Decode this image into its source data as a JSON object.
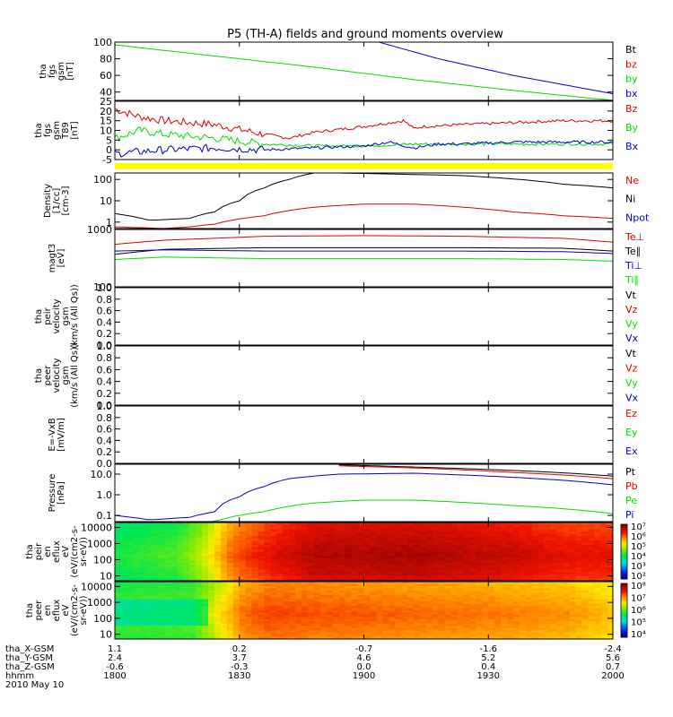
{
  "title": "P5 (TH-A) fields and ground moments overview",
  "colors": {
    "black": "#000000",
    "red": "#dd0000",
    "green": "#00dd00",
    "blue": "#0000cc",
    "yellow": "#ffff00"
  },
  "chart_data": [
    {
      "type": "line",
      "id": "bgsm",
      "ylabel": [
        "tha",
        "fgs",
        "gsm",
        "[nT]"
      ],
      "ylim": [
        30,
        100
      ],
      "yticks": [
        "100",
        "80",
        "60",
        "40"
      ],
      "ytick_values": [
        100,
        80,
        60,
        40
      ],
      "legend": [
        {
          "name": "Bt",
          "color": "black"
        },
        {
          "name": "bz",
          "color": "red"
        },
        {
          "name": "by",
          "color": "green"
        },
        {
          "name": "bx",
          "color": "blue"
        }
      ],
      "series": [
        {
          "name": "by",
          "color": "green",
          "x": [
            -0.05,
            0.4,
            0.6,
            0.8,
            1.0
          ],
          "y": [
            100,
            70,
            55,
            42,
            30
          ]
        },
        {
          "name": "bx",
          "color": "blue",
          "x": [
            0.53,
            0.65,
            0.8,
            1.0
          ],
          "y": [
            100,
            80,
            60,
            38
          ]
        }
      ]
    },
    {
      "type": "line",
      "id": "bt89",
      "ylabel": [
        "tha",
        "fgs",
        "gsm",
        "T89",
        "[nT]"
      ],
      "ylim": [
        -5,
        25
      ],
      "yticks": [
        "25",
        "20",
        "15",
        "10",
        "5",
        "0",
        "-5"
      ],
      "ytick_values": [
        25,
        20,
        15,
        10,
        5,
        0,
        -5
      ],
      "legend": [
        {
          "name": "Bz",
          "color": "red"
        },
        {
          "name": "By",
          "color": "green"
        },
        {
          "name": "Bx",
          "color": "blue"
        }
      ],
      "series": [
        {
          "name": "Bz",
          "color": "red",
          "noisy": true,
          "x": [
            0,
            0.05,
            0.1,
            0.2,
            0.3,
            0.35,
            0.4,
            0.5,
            0.58,
            0.6,
            0.62,
            0.7,
            0.8,
            0.9,
            1.0
          ],
          "y": [
            21,
            17,
            15,
            13,
            8,
            6,
            9,
            12,
            15,
            11,
            12,
            13,
            14,
            15,
            15
          ]
        },
        {
          "name": "By",
          "color": "green",
          "noisy": true,
          "x": [
            0,
            0.05,
            0.1,
            0.2,
            0.3,
            0.4,
            0.5,
            0.6,
            0.7,
            0.8,
            1.0
          ],
          "y": [
            6,
            10,
            8,
            6,
            3,
            2,
            2,
            3,
            3,
            3,
            3
          ]
        },
        {
          "name": "Bx",
          "color": "blue",
          "noisy": true,
          "x": [
            0,
            0.1,
            0.2,
            0.3,
            0.4,
            0.5,
            0.55,
            0.6,
            0.65,
            0.7,
            0.8,
            1.0
          ],
          "y": [
            -2,
            0,
            1,
            0,
            1,
            2,
            4,
            1,
            3,
            3,
            4,
            4
          ]
        }
      ]
    },
    {
      "type": "line",
      "id": "density",
      "ylabel": [
        "Density",
        "[1/cc]",
        "[cm-3]"
      ],
      "log": true,
      "ylim": [
        0.5,
        200
      ],
      "yticks": [
        "100",
        "10",
        "1"
      ],
      "ytick_values": [
        100,
        10,
        1
      ],
      "legend": [
        {
          "name": "Ne",
          "color": "red"
        },
        {
          "name": "Ni",
          "color": "black"
        },
        {
          "name": "Npot",
          "color": "blue"
        }
      ],
      "series": [
        {
          "name": "Ni",
          "color": "black",
          "x": [
            0,
            0.07,
            0.15,
            0.2,
            0.25,
            0.3,
            0.35,
            0.4,
            0.45,
            0.7,
            0.9,
            1.0
          ],
          "y": [
            2.5,
            1.2,
            1.5,
            3,
            10,
            40,
            100,
            200,
            200,
            150,
            60,
            40
          ]
        },
        {
          "name": "Ne",
          "color": "red",
          "x": [
            0,
            0.1,
            0.15,
            0.2,
            0.3,
            0.4,
            0.5,
            0.6,
            0.7,
            0.8,
            0.9,
            1.0
          ],
          "y": [
            0.6,
            0.5,
            0.6,
            0.8,
            2,
            5,
            7,
            7,
            5,
            3,
            2,
            1.5
          ]
        }
      ]
    },
    {
      "type": "line",
      "id": "temp",
      "ylabel": [
        "magt3",
        "[eV]"
      ],
      "log": true,
      "ylim": [
        100,
        1000
      ],
      "yticks": [
        "1000",
        "100"
      ],
      "ytick_values": [
        1000,
        100
      ],
      "legend": [
        {
          "name": "Te⊥",
          "color": "red"
        },
        {
          "name": "Te∥",
          "color": "black"
        },
        {
          "name": "Ti⊥",
          "color": "blue"
        },
        {
          "name": "Ti∥",
          "color": "green"
        }
      ],
      "series": [
        {
          "name": "Te⊥",
          "color": "red",
          "x": [
            0,
            0.1,
            0.2,
            0.3,
            0.5,
            0.7,
            0.9,
            1.0
          ],
          "y": [
            550,
            650,
            700,
            760,
            780,
            760,
            700,
            600
          ]
        },
        {
          "name": "Te∥",
          "color": "black",
          "x": [
            0,
            0.1,
            0.3,
            0.5,
            0.7,
            0.9,
            1.0
          ],
          "y": [
            370,
            450,
            480,
            480,
            480,
            470,
            420
          ]
        },
        {
          "name": "Ti⊥",
          "color": "blue",
          "x": [
            0,
            0.1,
            0.3,
            0.5,
            0.7,
            0.9,
            1.0
          ],
          "y": [
            420,
            440,
            420,
            420,
            420,
            410,
            380
          ]
        },
        {
          "name": "Ti∥",
          "color": "green",
          "x": [
            0,
            0.1,
            0.3,
            0.5,
            0.7,
            0.9,
            1.0
          ],
          "y": [
            300,
            330,
            310,
            310,
            310,
            300,
            280
          ]
        }
      ]
    },
    {
      "type": "line",
      "id": "peirvel",
      "ylabel": [
        "tha",
        "peir",
        "velocity",
        "gsm",
        "(km/s (All Qs))"
      ],
      "ylim": [
        0,
        1
      ],
      "yticks": [
        "1.0",
        "0.8",
        "0.6",
        "0.4",
        "0.2",
        "0.0"
      ],
      "ytick_values": [
        1,
        0.8,
        0.6,
        0.4,
        0.2,
        0
      ],
      "legend": [
        {
          "name": "Vt",
          "color": "black"
        },
        {
          "name": "Vz",
          "color": "red"
        },
        {
          "name": "Vy",
          "color": "green"
        },
        {
          "name": "Vx",
          "color": "blue"
        }
      ],
      "series": []
    },
    {
      "type": "line",
      "id": "peervel",
      "ylabel": [
        "tha",
        "peer",
        "velocity",
        "gsm",
        "(km/s (All Qs))"
      ],
      "ylim": [
        0,
        1
      ],
      "yticks": [
        "1.0",
        "0.8",
        "0.6",
        "0.4",
        "0.2",
        "0.0"
      ],
      "ytick_values": [
        1,
        0.8,
        0.6,
        0.4,
        0.2,
        0
      ],
      "legend": [
        {
          "name": "Vt",
          "color": "black"
        },
        {
          "name": "Vz",
          "color": "red"
        },
        {
          "name": "Vy",
          "color": "green"
        },
        {
          "name": "Vx",
          "color": "blue"
        }
      ],
      "series": []
    },
    {
      "type": "line",
      "id": "efield",
      "ylabel": [
        "E=-VxB",
        "[mV/m]"
      ],
      "ylim": [
        0,
        1
      ],
      "yticks": [
        "1.0",
        "0.8",
        "0.6",
        "0.4",
        "0.2",
        "0.0"
      ],
      "ytick_values": [
        1,
        0.8,
        0.6,
        0.4,
        0.2,
        0
      ],
      "legend": [
        {
          "name": "Ez",
          "color": "red"
        },
        {
          "name": "Ey",
          "color": "green"
        },
        {
          "name": "Ex",
          "color": "blue"
        }
      ],
      "series": []
    },
    {
      "type": "line",
      "id": "pressure",
      "ylabel": [
        "Pressure",
        "[nPa]"
      ],
      "log": true,
      "ylim": [
        0.05,
        30
      ],
      "yticks": [
        "10.0",
        "1.0",
        "0.1"
      ],
      "ytick_values": [
        10,
        1,
        0.1
      ],
      "legend": [
        {
          "name": "Pt",
          "color": "black"
        },
        {
          "name": "Pb",
          "color": "red"
        },
        {
          "name": "Pe",
          "color": "green"
        },
        {
          "name": "Pi",
          "color": "blue"
        }
      ],
      "series": [
        {
          "name": "Pt",
          "color": "black",
          "x": [
            0.45,
            0.6,
            0.8,
            1.0
          ],
          "y": [
            28,
            22,
            15,
            8
          ]
        },
        {
          "name": "Pb",
          "color": "red",
          "x": [
            0.45,
            0.6,
            0.8,
            1.0
          ],
          "y": [
            25,
            20,
            12,
            6
          ]
        },
        {
          "name": "Pi",
          "color": "blue",
          "x": [
            0,
            0.07,
            0.15,
            0.2,
            0.25,
            0.3,
            0.35,
            0.45,
            0.6,
            0.8,
            1.0
          ],
          "y": [
            0.1,
            0.06,
            0.08,
            0.15,
            0.8,
            2.5,
            6,
            10,
            11,
            7,
            3
          ]
        },
        {
          "name": "Pe",
          "color": "green",
          "x": [
            0.12,
            0.2,
            0.3,
            0.4,
            0.5,
            0.6,
            0.8,
            1.0
          ],
          "y": [
            0.05,
            0.05,
            0.15,
            0.4,
            0.55,
            0.55,
            0.3,
            0.12
          ]
        }
      ]
    },
    {
      "type": "heatmap",
      "id": "peirspec",
      "ylabel": [
        "tha",
        "peir",
        "en",
        "eflux",
        "eV",
        "(eV/(cm2-s-",
        "sr-eV))"
      ],
      "log": true,
      "ylim": [
        5,
        20000
      ],
      "yticks": [
        "10000",
        "1000",
        "100",
        "10"
      ],
      "ytick_values": [
        10000,
        1000,
        100,
        10
      ],
      "colorbar": [
        "10⁷",
        "10⁶",
        "10⁵",
        "10⁴",
        "10³",
        "10²"
      ],
      "profile": [
        [
          0,
          0.45
        ],
        [
          0.12,
          0.5
        ],
        [
          0.16,
          0.58
        ],
        [
          0.2,
          0.7
        ],
        [
          0.23,
          0.8
        ],
        [
          0.3,
          0.88
        ],
        [
          0.4,
          0.95
        ],
        [
          0.6,
          0.96
        ],
        [
          0.8,
          0.92
        ],
        [
          0.9,
          0.88
        ],
        [
          1,
          0.88
        ]
      ]
    },
    {
      "type": "heatmap",
      "id": "peerspec",
      "ylabel": [
        "tha",
        "peer",
        "en",
        "eflux",
        "eV",
        "(eV/(cm2-s-",
        "sr-eV))"
      ],
      "log": true,
      "ylim": [
        5,
        20000
      ],
      "yticks": [
        "10000",
        "1000",
        "100",
        "10"
      ],
      "ytick_values": [
        10000,
        1000,
        100,
        10
      ],
      "colorbar": [
        "10⁸",
        "10⁷",
        "10⁶",
        "10⁵",
        "10⁴"
      ],
      "profile": [
        [
          0,
          0.5
        ],
        [
          0.15,
          0.52
        ],
        [
          0.2,
          0.65
        ],
        [
          0.25,
          0.78
        ],
        [
          0.3,
          0.82
        ],
        [
          0.5,
          0.8
        ],
        [
          0.7,
          0.78
        ],
        [
          0.9,
          0.75
        ],
        [
          1,
          0.7
        ]
      ]
    }
  ],
  "xaxis": {
    "rows": [
      {
        "label": "tha_X-GSM",
        "values": [
          "1.1",
          "0.2",
          "-0.7",
          "-1.6",
          "-2.4"
        ]
      },
      {
        "label": "tha_Y-GSM",
        "values": [
          "2.4",
          "3.7",
          "4.6",
          "5.2",
          "5.6"
        ]
      },
      {
        "label": "tha_Z-GSM",
        "values": [
          "-0.6",
          "-0.3",
          "0.0",
          "0.4",
          "0.7"
        ]
      },
      {
        "label": "hhmm",
        "values": [
          "1800",
          "1830",
          "1900",
          "1930",
          "2000"
        ]
      }
    ],
    "date": "2010 May 10"
  }
}
